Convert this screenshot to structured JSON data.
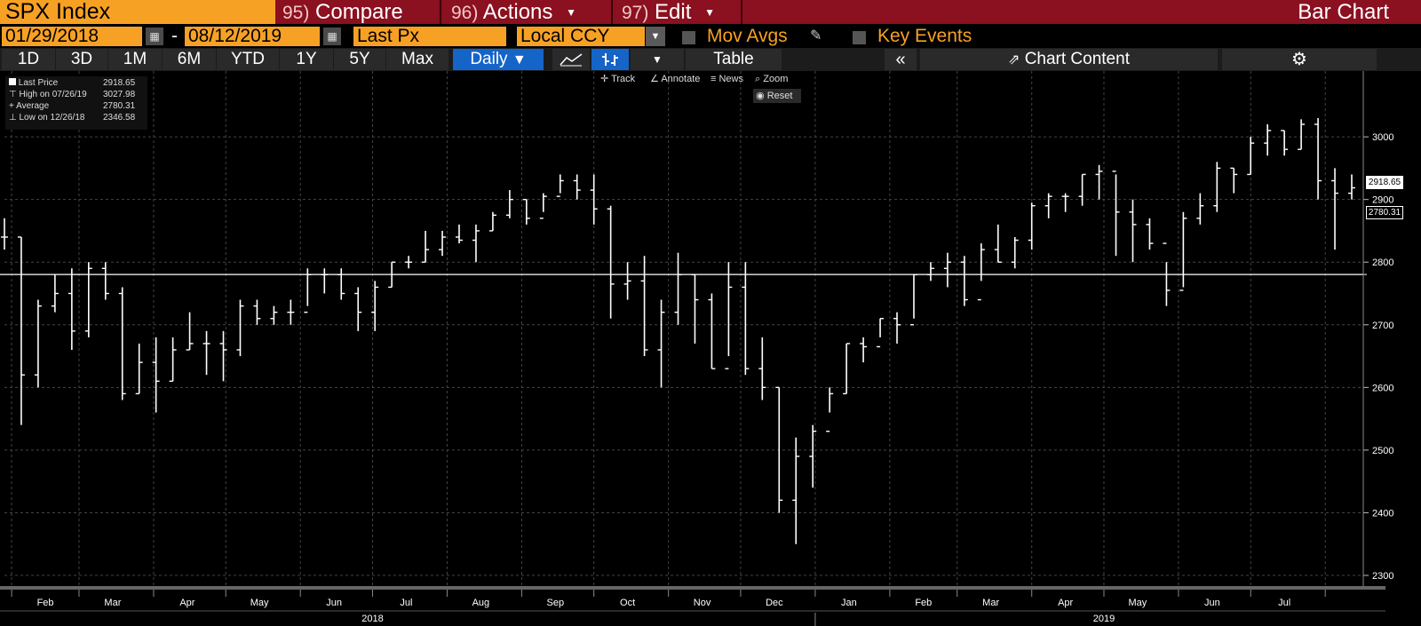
{
  "header": {
    "ticker": "SPX Index",
    "menus": [
      {
        "num": "95)",
        "label": "Compare"
      },
      {
        "num": "96)",
        "label": "Actions"
      },
      {
        "num": "97)",
        "label": "Edit"
      }
    ],
    "title": "Bar Chart"
  },
  "controls": {
    "start_date": "01/29/2018",
    "dash": "-",
    "end_date": "08/12/2019",
    "field": "Last Px",
    "currency": "Local CCY",
    "mov_avgs": "Mov Avgs",
    "key_events": "Key Events"
  },
  "toolbar": {
    "ranges": [
      "1D",
      "3D",
      "1M",
      "6M",
      "YTD",
      "1Y",
      "5Y",
      "Max"
    ],
    "frequency": "Daily",
    "table": "Table",
    "chart_content": "Chart Content"
  },
  "tools": {
    "track": "Track",
    "annotate": "Annotate",
    "news": "News",
    "zoom": "Zoom",
    "reset": "Reset"
  },
  "legend": {
    "last_label": "Last Price",
    "last_value": "2918.65",
    "high_label": "High on 07/26/19",
    "high_value": "3027.98",
    "avg_label": "Average",
    "avg_value": "2780.31",
    "low_label": "Low on 12/26/18",
    "low_value": "2346.58"
  },
  "colors": {
    "orange": "#f7a124",
    "maroon": "#8b1020",
    "blue": "#1564c8"
  },
  "chart_data": {
    "type": "bar",
    "subtype": "ohlc",
    "y_ticks": [
      2300,
      2400,
      2500,
      2600,
      2700,
      2800,
      2900,
      3000
    ],
    "ylim": [
      2280,
      3090
    ],
    "x_ticks": [
      "Feb",
      "Mar",
      "Apr",
      "May",
      "Jun",
      "Jul",
      "Aug",
      "Sep",
      "Oct",
      "Nov",
      "Dec",
      "Jan",
      "Feb",
      "Mar",
      "Apr",
      "May",
      "Jun",
      "Jul"
    ],
    "years": [
      "2018",
      "2019"
    ],
    "x": [
      "2018-01-29",
      "2018-02-05",
      "2018-02-12",
      "2018-02-19",
      "2018-02-26",
      "2018-03-05",
      "2018-03-12",
      "2018-03-19",
      "2018-03-26",
      "2018-04-02",
      "2018-04-09",
      "2018-04-16",
      "2018-04-23",
      "2018-04-30",
      "2018-05-07",
      "2018-05-14",
      "2018-05-21",
      "2018-05-28",
      "2018-06-04",
      "2018-06-11",
      "2018-06-18",
      "2018-06-25",
      "2018-07-02",
      "2018-07-09",
      "2018-07-16",
      "2018-07-23",
      "2018-07-30",
      "2018-08-06",
      "2018-08-13",
      "2018-08-20",
      "2018-08-27",
      "2018-09-03",
      "2018-09-10",
      "2018-09-17",
      "2018-09-24",
      "2018-10-01",
      "2018-10-08",
      "2018-10-15",
      "2018-10-22",
      "2018-10-29",
      "2018-11-05",
      "2018-11-12",
      "2018-11-19",
      "2018-11-26",
      "2018-12-03",
      "2018-12-10",
      "2018-12-17",
      "2018-12-24",
      "2018-12-31",
      "2019-01-07",
      "2019-01-14",
      "2019-01-21",
      "2019-01-28",
      "2019-02-04",
      "2019-02-11",
      "2019-02-18",
      "2019-02-25",
      "2019-03-04",
      "2019-03-11",
      "2019-03-18",
      "2019-03-25",
      "2019-04-01",
      "2019-04-08",
      "2019-04-15",
      "2019-04-22",
      "2019-04-29",
      "2019-05-06",
      "2019-05-13",
      "2019-05-20",
      "2019-05-27",
      "2019-06-03",
      "2019-06-10",
      "2019-06-17",
      "2019-06-24",
      "2019-07-01",
      "2019-07-08",
      "2019-07-15",
      "2019-07-22",
      "2019-07-29",
      "2019-08-05",
      "2019-08-12"
    ],
    "close": [
      2840,
      2620,
      2730,
      2750,
      2690,
      2790,
      2750,
      2590,
      2640,
      2610,
      2660,
      2670,
      2670,
      2660,
      2730,
      2710,
      2720,
      2720,
      2780,
      2780,
      2750,
      2720,
      2760,
      2800,
      2800,
      2820,
      2840,
      2835,
      2850,
      2875,
      2900,
      2870,
      2905,
      2930,
      2915,
      2885,
      2765,
      2770,
      2660,
      2720,
      2780,
      2740,
      2630,
      2760,
      2630,
      2600,
      2420,
      2490,
      2530,
      2590,
      2670,
      2665,
      2710,
      2700,
      2780,
      2790,
      2800,
      2740,
      2820,
      2800,
      2835,
      2890,
      2905,
      2905,
      2940,
      2945,
      2880,
      2860,
      2830,
      2755,
      2870,
      2890,
      2950,
      2940,
      2990,
      3010,
      2980,
      3020,
      2930,
      2910,
      2918.65
    ],
    "high": [
      2870,
      2840,
      2740,
      2780,
      2790,
      2800,
      2800,
      2760,
      2670,
      2680,
      2680,
      2720,
      2690,
      2690,
      2740,
      2740,
      2730,
      2740,
      2790,
      2790,
      2790,
      2760,
      2770,
      2800,
      2810,
      2850,
      2850,
      2860,
      2860,
      2880,
      2915,
      2900,
      2910,
      2940,
      2940,
      2940,
      2890,
      2800,
      2810,
      2740,
      2815,
      2780,
      2750,
      2800,
      2800,
      2680,
      2600,
      2520,
      2540,
      2600,
      2670,
      2680,
      2710,
      2720,
      2780,
      2800,
      2815,
      2810,
      2830,
      2860,
      2840,
      2895,
      2910,
      2910,
      2940,
      2955,
      2940,
      2900,
      2870,
      2800,
      2880,
      2910,
      2960,
      2950,
      3000,
      3020,
      3010,
      3028,
      3030,
      2950,
      2940
    ],
    "low": [
      2820,
      2540,
      2600,
      2720,
      2660,
      2680,
      2740,
      2580,
      2590,
      2560,
      2610,
      2660,
      2620,
      2610,
      2650,
      2700,
      2700,
      2700,
      2730,
      2750,
      2740,
      2690,
      2690,
      2760,
      2790,
      2800,
      2810,
      2830,
      2800,
      2850,
      2870,
      2860,
      2880,
      2910,
      2900,
      2860,
      2710,
      2740,
      2650,
      2600,
      2700,
      2670,
      2630,
      2650,
      2620,
      2580,
      2400,
      2350,
      2440,
      2560,
      2590,
      2640,
      2680,
      2670,
      2710,
      2770,
      2760,
      2730,
      2770,
      2800,
      2790,
      2820,
      2870,
      2880,
      2890,
      2900,
      2810,
      2800,
      2820,
      2730,
      2760,
      2860,
      2880,
      2910,
      2940,
      2970,
      2970,
      2980,
      2900,
      2820,
      2900
    ]
  }
}
